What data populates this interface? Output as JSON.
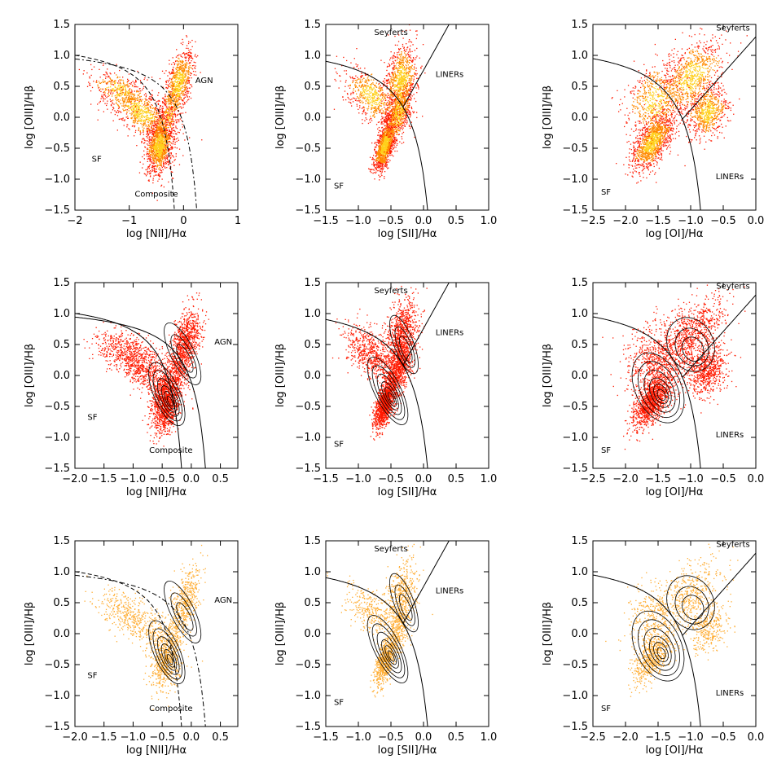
{
  "colors": {
    "scatter_red": "#ff1a00",
    "scatter_orange": "#ff8a00",
    "scatter_yellow": "#ffcf1a",
    "scatter_light_orange": "#ffad33",
    "contour": "#000000"
  },
  "chart_data": [
    {
      "type": "scatter",
      "row": 0,
      "col": 0,
      "diagram": "NII",
      "xlabel": "log [NII]/Hα",
      "ylabel": "log [OIII]/Hβ",
      "xlim": [
        -2,
        1
      ],
      "ylim": [
        -1.5,
        1.5
      ],
      "xticks": [
        -2,
        -1,
        0,
        1
      ],
      "xtick_labels": [
        "−2",
        "−1",
        "0",
        "1"
      ],
      "yticks": [
        -1.5,
        -1.0,
        -0.5,
        0.0,
        0.5,
        1.0,
        1.5
      ],
      "ytick_labels": [
        "−1.5",
        "−1.0",
        "−0.5",
        "0.0",
        "0.5",
        "1.0",
        "1.5"
      ],
      "scatter_style": "red-yellow density",
      "contours": false,
      "demarcation_lines": [
        "kewley_dashdot",
        "kauffmann_dashed"
      ],
      "annotations": [
        {
          "text": "AGN",
          "x": 0.38,
          "y": 0.55
        },
        {
          "text": "SF",
          "x": -1.6,
          "y": -0.72
        },
        {
          "text": "Composite",
          "x": -0.5,
          "y": -1.28
        }
      ]
    },
    {
      "type": "scatter",
      "row": 0,
      "col": 1,
      "diagram": "SII",
      "xlabel": "log [SII]/Hα",
      "ylabel": "log [OIII]/Hβ",
      "xlim": [
        -1.5,
        1.0
      ],
      "ylim": [
        -1.5,
        1.5
      ],
      "xticks": [
        -1.5,
        -1.0,
        -0.5,
        0.0,
        0.5,
        1.0
      ],
      "xtick_labels": [
        "−1.5",
        "−1.0",
        "−0.5",
        "0.0",
        "0.5",
        "1.0"
      ],
      "yticks": [
        -1.5,
        -1.0,
        -0.5,
        0.0,
        0.5,
        1.0,
        1.5
      ],
      "ytick_labels": [
        "−1.5",
        "−1.0",
        "−0.5",
        "0.0",
        "0.5",
        "1.0",
        "1.5"
      ],
      "scatter_style": "red-yellow density",
      "contours": false,
      "demarcation_lines": [
        "kewley_sii",
        "seyfert_liner_sii"
      ],
      "annotations": [
        {
          "text": "Seyferts",
          "x": -0.5,
          "y": 1.33
        },
        {
          "text": "LINERs",
          "x": 0.4,
          "y": 0.65
        },
        {
          "text": "SF",
          "x": -1.3,
          "y": -1.15
        }
      ]
    },
    {
      "type": "scatter",
      "row": 0,
      "col": 2,
      "diagram": "OI",
      "xlabel": "log [OI]/Hα",
      "ylabel": "log [OIII]/Hβ",
      "xlim": [
        -2.5,
        0.0
      ],
      "ylim": [
        -1.5,
        1.5
      ],
      "xticks": [
        -2.5,
        -2.0,
        -1.5,
        -1.0,
        -0.5,
        0.0
      ],
      "xtick_labels": [
        "−2.5",
        "−2.0",
        "−1.5",
        "−1.0",
        "−0.5",
        "0.0"
      ],
      "yticks": [
        -1.5,
        -1.0,
        -0.5,
        0.0,
        0.5,
        1.0,
        1.5
      ],
      "ytick_labels": [
        "−1.5",
        "−1.0",
        "−0.5",
        "0.0",
        "0.5",
        "1.0",
        "1.5"
      ],
      "scatter_style": "red-yellow density",
      "contours": false,
      "demarcation_lines": [
        "kewley_oi",
        "seyfert_liner_oi"
      ],
      "annotations": [
        {
          "text": "Seyferts",
          "x": -0.35,
          "y": 1.4
        },
        {
          "text": "LINERs",
          "x": -0.4,
          "y": -1.0
        },
        {
          "text": "SF",
          "x": -2.3,
          "y": -1.25
        }
      ]
    },
    {
      "type": "scatter",
      "row": 1,
      "col": 0,
      "diagram": "NII",
      "xlabel": "log [NII]/Hα",
      "ylabel": "log [OIII]/Hβ",
      "xlim": [
        -2.0,
        0.8
      ],
      "ylim": [
        -1.5,
        1.5
      ],
      "xticks": [
        -2.0,
        -1.5,
        -1.0,
        -0.5,
        0.0,
        0.5
      ],
      "xtick_labels": [
        "−2.0",
        "−1.5",
        "−1.0",
        "−0.5",
        "0.0",
        "0.5"
      ],
      "yticks": [
        -1.5,
        -1.0,
        -0.5,
        0.0,
        0.5,
        1.0,
        1.5
      ],
      "ytick_labels": [
        "−1.5",
        "−1.0",
        "−0.5",
        "0.0",
        "0.5",
        "1.0",
        "1.5"
      ],
      "scatter_style": "red",
      "contours": true,
      "demarcation_lines": [
        "kewley_solid",
        "kauffmann_solid"
      ],
      "annotations": [
        {
          "text": "AGN",
          "x": 0.55,
          "y": 0.5
        },
        {
          "text": "SF",
          "x": -1.7,
          "y": -0.72
        },
        {
          "text": "Composite",
          "x": -0.35,
          "y": -1.25
        }
      ]
    },
    {
      "type": "scatter",
      "row": 1,
      "col": 1,
      "diagram": "SII",
      "xlabel": "log [SII]/Hα",
      "ylabel": "log [OIII]/Hβ",
      "xlim": [
        -1.5,
        1.0
      ],
      "ylim": [
        -1.5,
        1.5
      ],
      "xticks": [
        -1.5,
        -1.0,
        -0.5,
        0.0,
        0.5,
        1.0
      ],
      "xtick_labels": [
        "−1.5",
        "−1.0",
        "−0.5",
        "0.0",
        "0.5",
        "1.0"
      ],
      "yticks": [
        -1.5,
        -1.0,
        -0.5,
        0.0,
        0.5,
        1.0,
        1.5
      ],
      "ytick_labels": [
        "−1.5",
        "−1.0",
        "−0.5",
        "0.0",
        "0.5",
        "1.0",
        "1.5"
      ],
      "scatter_style": "red",
      "contours": true,
      "demarcation_lines": [
        "kewley_sii",
        "seyfert_liner_sii"
      ],
      "annotations": [
        {
          "text": "Seyferts",
          "x": -0.5,
          "y": 1.33
        },
        {
          "text": "LINERs",
          "x": 0.4,
          "y": 0.65
        },
        {
          "text": "SF",
          "x": -1.3,
          "y": -1.15
        }
      ]
    },
    {
      "type": "scatter",
      "row": 1,
      "col": 2,
      "diagram": "OI",
      "xlabel": "log [OI]/Hα",
      "ylabel": "log [OIII]/Hβ",
      "xlim": [
        -2.5,
        0.0
      ],
      "ylim": [
        -1.5,
        1.5
      ],
      "xticks": [
        -2.5,
        -2.0,
        -1.5,
        -1.0,
        -0.5,
        0.0
      ],
      "xtick_labels": [
        "−2.5",
        "−2.0",
        "−1.5",
        "−1.0",
        "−0.5",
        "0.0"
      ],
      "yticks": [
        -1.5,
        -1.0,
        -0.5,
        0.0,
        0.5,
        1.0,
        1.5
      ],
      "ytick_labels": [
        "−1.5",
        "−1.0",
        "−0.5",
        "0.0",
        "0.5",
        "1.0",
        "1.5"
      ],
      "scatter_style": "red",
      "contours": true,
      "demarcation_lines": [
        "kewley_oi",
        "seyfert_liner_oi"
      ],
      "annotations": [
        {
          "text": "Seyferts",
          "x": -0.35,
          "y": 1.4
        },
        {
          "text": "LINERs",
          "x": -0.4,
          "y": -1.0
        },
        {
          "text": "SF",
          "x": -2.3,
          "y": -1.25
        }
      ]
    },
    {
      "type": "scatter",
      "row": 2,
      "col": 0,
      "diagram": "NII",
      "xlabel": "log [NII]/Hα",
      "ylabel": "log [OIII]/Hβ",
      "xlim": [
        -2.0,
        0.8
      ],
      "ylim": [
        -1.5,
        1.5
      ],
      "xticks": [
        -2.0,
        -1.5,
        -1.0,
        -0.5,
        0.0,
        0.5
      ],
      "xtick_labels": [
        "−2.0",
        "−1.5",
        "−1.0",
        "−0.5",
        "0.0",
        "0.5"
      ],
      "yticks": [
        -1.5,
        -1.0,
        -0.5,
        0.0,
        0.5,
        1.0,
        1.5
      ],
      "ytick_labels": [
        "−1.5",
        "−1.0",
        "−0.5",
        "0.0",
        "0.5",
        "1.0",
        "1.5"
      ],
      "scatter_style": "orange",
      "contours": true,
      "demarcation_lines": [
        "kewley_dashdot",
        "kauffmann_dashed"
      ],
      "annotations": [
        {
          "text": "AGN",
          "x": 0.55,
          "y": 0.5
        },
        {
          "text": "SF",
          "x": -1.7,
          "y": -0.72
        },
        {
          "text": "Composite",
          "x": -0.35,
          "y": -1.25
        }
      ]
    },
    {
      "type": "scatter",
      "row": 2,
      "col": 1,
      "diagram": "SII",
      "xlabel": "log [SII]/Hα",
      "ylabel": "log [OIII]/Hβ",
      "xlim": [
        -1.5,
        1.0
      ],
      "ylim": [
        -1.5,
        1.5
      ],
      "xticks": [
        -1.5,
        -1.0,
        -0.5,
        0.0,
        0.5,
        1.0
      ],
      "xtick_labels": [
        "−1.5",
        "−1.0",
        "−0.5",
        "0.0",
        "0.5",
        "1.0"
      ],
      "yticks": [
        -1.5,
        -1.0,
        -0.5,
        0.0,
        0.5,
        1.0,
        1.5
      ],
      "ytick_labels": [
        "−1.5",
        "−1.0",
        "−0.5",
        "0.0",
        "0.5",
        "1.0",
        "1.5"
      ],
      "scatter_style": "orange",
      "contours": true,
      "demarcation_lines": [
        "kewley_sii",
        "seyfert_liner_sii"
      ],
      "annotations": [
        {
          "text": "Seyferts",
          "x": -0.5,
          "y": 1.33
        },
        {
          "text": "LINERs",
          "x": 0.4,
          "y": 0.65
        },
        {
          "text": "SF",
          "x": -1.3,
          "y": -1.15
        }
      ]
    },
    {
      "type": "scatter",
      "row": 2,
      "col": 2,
      "diagram": "OI",
      "xlabel": "log [OI]/Hα",
      "ylabel": "log [OIII]/Hβ",
      "xlim": [
        -2.5,
        0.0
      ],
      "ylim": [
        -1.5,
        1.5
      ],
      "xticks": [
        -2.5,
        -2.0,
        -1.5,
        -1.0,
        -0.5,
        0.0
      ],
      "xtick_labels": [
        "−2.5",
        "−2.0",
        "−1.5",
        "−1.0",
        "−0.5",
        "0.0"
      ],
      "yticks": [
        -1.5,
        -1.0,
        -0.5,
        0.0,
        0.5,
        1.0,
        1.5
      ],
      "ytick_labels": [
        "−1.5",
        "−1.0",
        "−0.5",
        "0.0",
        "0.5",
        "1.0",
        "1.5"
      ],
      "scatter_style": "orange",
      "contours": true,
      "demarcation_lines": [
        "kewley_oi",
        "seyfert_liner_oi"
      ],
      "annotations": [
        {
          "text": "Seyferts",
          "x": -0.35,
          "y": 1.4
        },
        {
          "text": "LINERs",
          "x": -0.4,
          "y": -1.0
        },
        {
          "text": "SF",
          "x": -2.3,
          "y": -1.25
        }
      ]
    }
  ]
}
